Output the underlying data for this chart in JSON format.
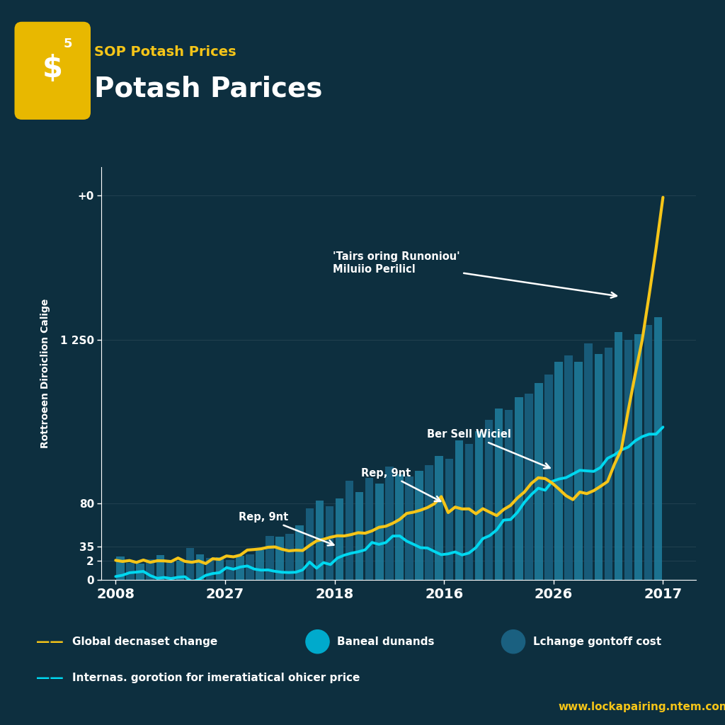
{
  "title_small": "SOP Potash Prices",
  "title_large": "Potash Parices",
  "ylabel": "Rottroeen Diroiclion Calige",
  "background_color": "#0d2f3f",
  "bar_color_light": "#1e7a9a",
  "bar_color_dark": "#1a6080",
  "yellow_line_color": "#f5c518",
  "cyan_line_color": "#00d8f0",
  "x_labels": [
    "2008",
    "2027",
    "2018",
    "2016",
    "2026",
    "2017"
  ],
  "y_tick_positions": [
    0,
    20,
    35,
    80,
    250,
    400
  ],
  "y_tick_labels": [
    "0",
    "2",
    "35",
    "80",
    "1 2S0",
    "+0"
  ],
  "website": "www.lockapairing.ntem.com",
  "dollar_icon_bg": "#e8b800",
  "legend_line1_label": "Global decnaset change",
  "legend_line2_label": "Internas. gorotion for imeratiatical ohicer price",
  "legend_circle1_label": "Baneal dunands",
  "legend_circle1_color": "#00aacc",
  "legend_circle2_label": "Lchange gontoff cost",
  "legend_circle2_color": "#1a6080",
  "ann1_text": "Rep, 9nt",
  "ann2_text": "Rep, 9nt",
  "ann3_text": "Ber Sell Wiciel",
  "ann4_text": "'Tairs oring Runoniou'\nMiluiio Perilicl"
}
